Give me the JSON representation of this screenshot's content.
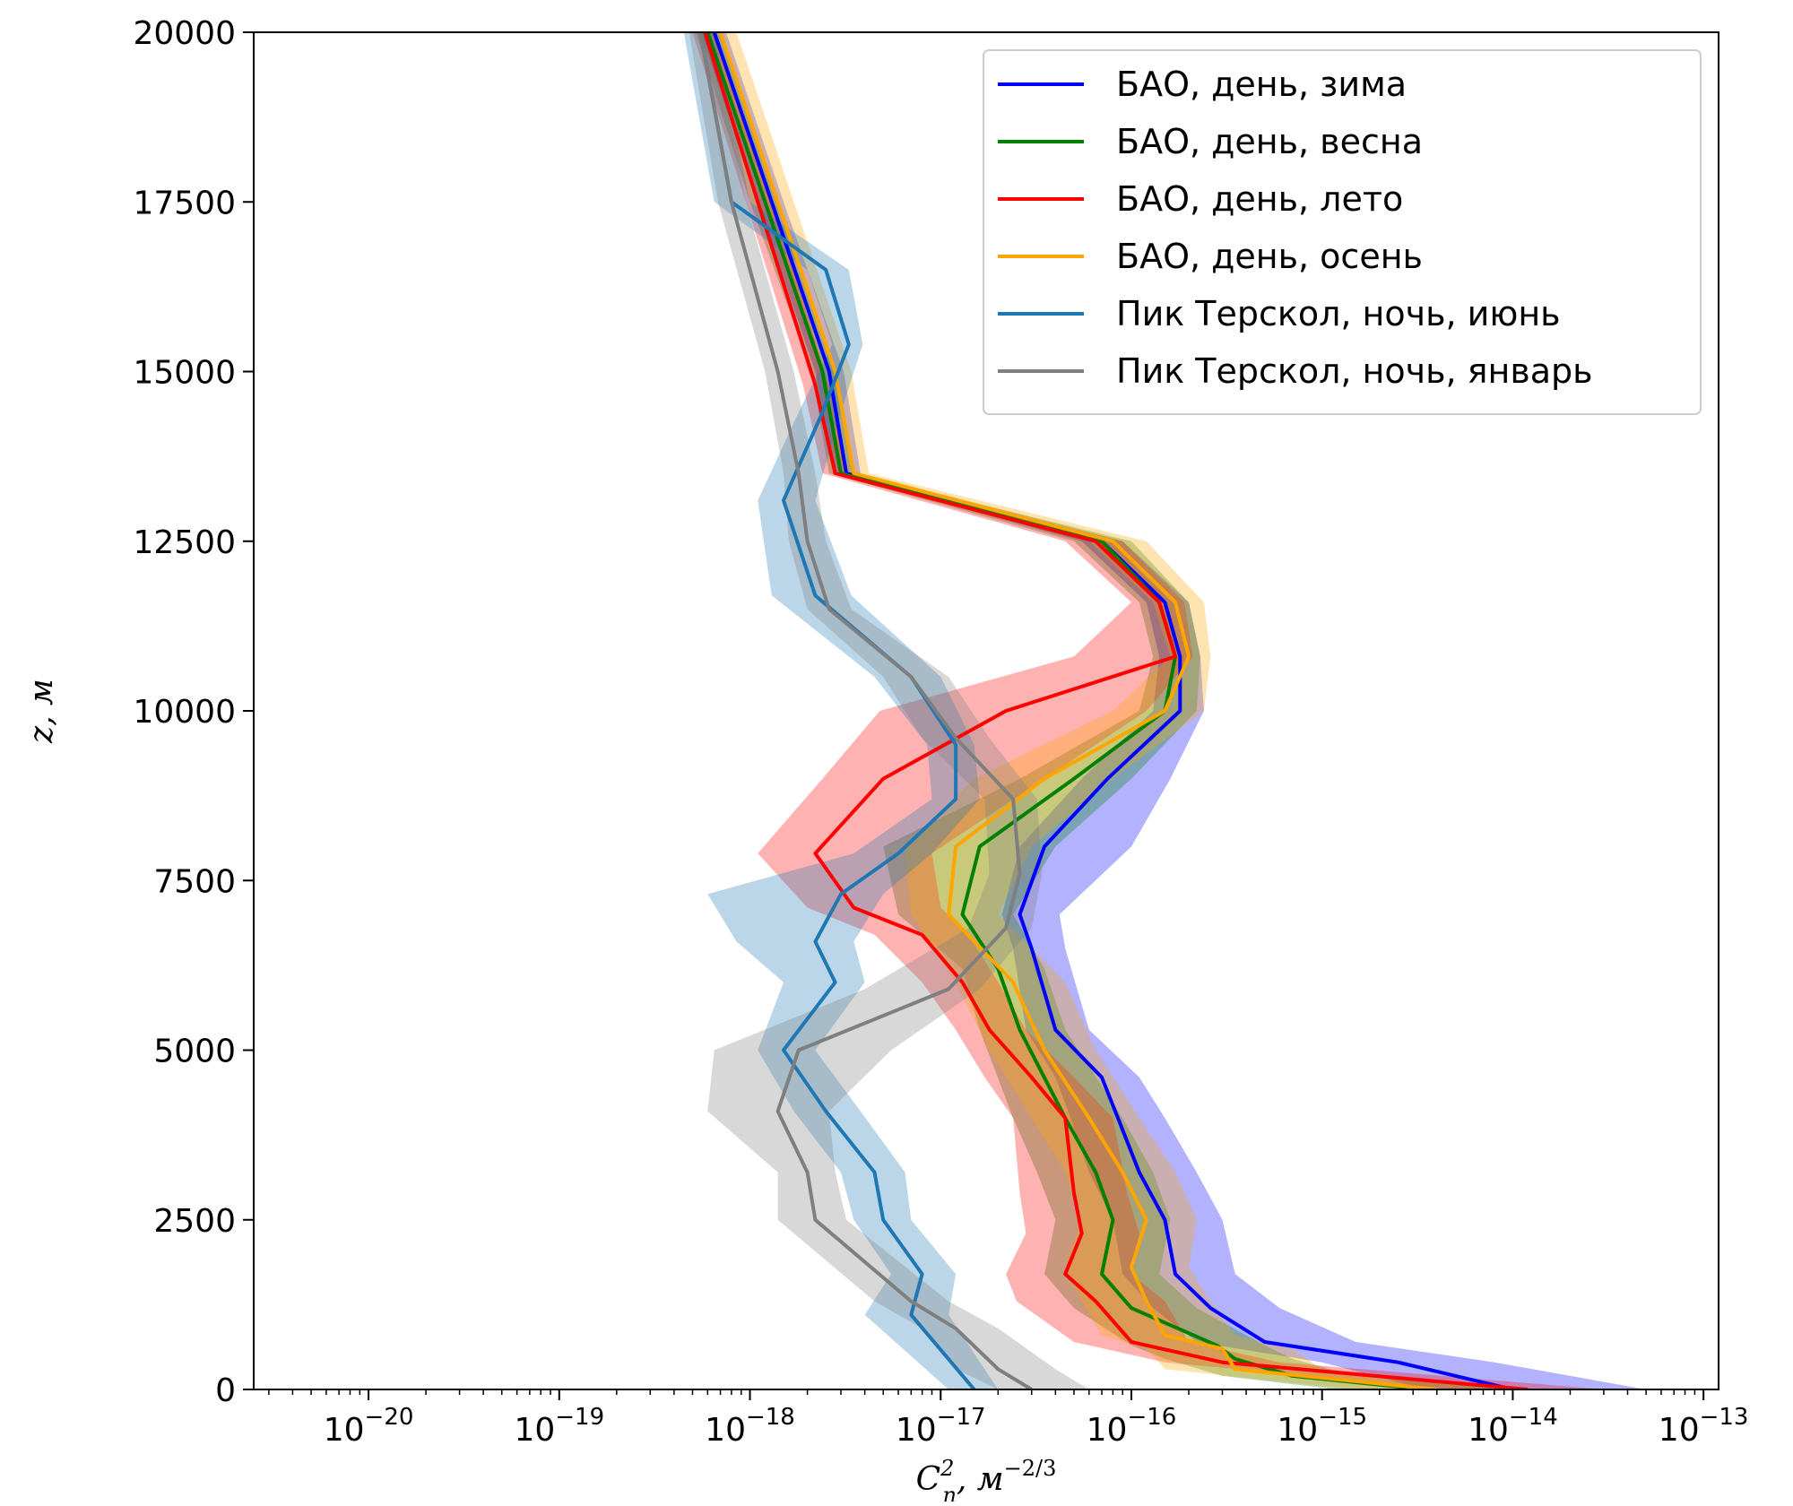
{
  "chart_data": {
    "type": "line",
    "title": "",
    "xlabel": "C_n^2, м^{-2/3}",
    "xlabel_parts": {
      "base": "C",
      "sub": "n",
      "sup": "2",
      "unit": ", м",
      "unit_sup": "−2/3"
    },
    "ylabel": "z, м",
    "xscale": "log",
    "xlim": [
      2.5e-21,
      1.2e-13
    ],
    "ylim": [
      0,
      20000
    ],
    "grid": false,
    "legend_position": "top-right",
    "x_ticks": [
      {
        "value": 1e-20,
        "base": "10",
        "exp": "−20"
      },
      {
        "value": 1e-19,
        "base": "10",
        "exp": "−19"
      },
      {
        "value": 1e-18,
        "base": "10",
        "exp": "−18"
      },
      {
        "value": 1e-17,
        "base": "10",
        "exp": "−17"
      },
      {
        "value": 1e-16,
        "base": "10",
        "exp": "−16"
      },
      {
        "value": 1e-15,
        "base": "10",
        "exp": "−15"
      },
      {
        "value": 1e-14,
        "base": "10",
        "exp": "−14"
      },
      {
        "value": 1e-13,
        "base": "10",
        "exp": "−13"
      }
    ],
    "y_ticks": [
      {
        "value": 0,
        "label": "0"
      },
      {
        "value": 2500,
        "label": "2500"
      },
      {
        "value": 5000,
        "label": "5000"
      },
      {
        "value": 7500,
        "label": "7500"
      },
      {
        "value": 10000,
        "label": "10000"
      },
      {
        "value": 12500,
        "label": "12500"
      },
      {
        "value": 15000,
        "label": "15000"
      },
      {
        "value": 17500,
        "label": "17500"
      },
      {
        "value": 20000,
        "label": "20000"
      }
    ],
    "series": [
      {
        "name": "БАО, день, зима",
        "color": "#0000ff",
        "z": [
          0,
          400,
          700,
          1200,
          1700,
          2500,
          3200,
          4000,
          4600,
          5300,
          6500,
          7000,
          8000,
          9000,
          10000,
          10800,
          11600,
          12500,
          13500,
          15000,
          17500,
          20000
        ],
        "x": [
          1e-14,
          2.5e-15,
          5e-16,
          2.6e-16,
          1.7e-16,
          1.5e-16,
          1.1e-16,
          8.5e-17,
          7e-17,
          4e-17,
          3e-17,
          2.6e-17,
          3.5e-17,
          7.5e-17,
          1.8e-16,
          1.8e-16,
          1.5e-16,
          7e-17,
          3.2e-18,
          2.6e-18,
          1.3e-18,
          6.5e-19
        ],
        "band_low": [
          3.5e-15,
          1e-15,
          2.2e-16,
          1.3e-16,
          9e-17,
          8e-17,
          6e-17,
          4.8e-17,
          4e-17,
          2.8e-17,
          2.4e-17,
          2.1e-17,
          2.6e-17,
          5.5e-17,
          1.3e-16,
          1.4e-16,
          1.2e-16,
          5.5e-17,
          2.8e-18,
          2.2e-18,
          1.1e-18,
          5.5e-19
        ],
        "band_high": [
          5e-14,
          8e-15,
          1.5e-15,
          6e-16,
          3.5e-16,
          3e-16,
          2.2e-16,
          1.5e-16,
          1.1e-16,
          6e-17,
          4.5e-17,
          4.2e-17,
          1e-16,
          1.6e-16,
          2.4e-16,
          2.3e-16,
          2e-16,
          9e-17,
          3.8e-18,
          3.1e-18,
          1.5e-18,
          7.5e-19
        ]
      },
      {
        "name": "БАО, день, весна",
        "color": "#008000",
        "z": [
          0,
          200,
          450,
          650,
          1200,
          1700,
          2500,
          3200,
          4000,
          5300,
          6200,
          7000,
          8000,
          9000,
          10000,
          10800,
          11600,
          12500,
          13500,
          15000,
          17500,
          20000
        ],
        "x": [
          3.5e-15,
          7e-16,
          3.5e-16,
          2.8e-16,
          1e-16,
          7e-17,
          8e-17,
          6.5e-17,
          4.5e-17,
          2.6e-17,
          2e-17,
          1.3e-17,
          1.6e-17,
          5e-17,
          1.5e-16,
          1.7e-16,
          1.4e-16,
          7e-17,
          3e-18,
          2.4e-18,
          1.2e-18,
          6e-19
        ],
        "band_low": [
          1.2e-15,
          3e-16,
          1.5e-16,
          1e-16,
          5e-17,
          3.5e-17,
          4e-17,
          3.2e-17,
          2.4e-17,
          1.6e-17,
          1.3e-17,
          6e-18,
          5e-18,
          2.6e-17,
          1.1e-16,
          1.3e-16,
          1.1e-16,
          5e-17,
          2.6e-18,
          2.1e-18,
          1e-18,
          5.2e-19
        ],
        "band_high": [
          1e-14,
          1.5e-15,
          7e-16,
          5e-16,
          2.2e-16,
          1.4e-16,
          1.6e-16,
          1.3e-16,
          9e-17,
          4.5e-17,
          3.5e-17,
          2.4e-17,
          4e-17,
          1e-16,
          2.2e-16,
          2.3e-16,
          2e-16,
          1e-16,
          3.5e-18,
          2.8e-18,
          1.4e-18,
          7e-19
        ]
      },
      {
        "name": "БАО, день, лето",
        "color": "#ff0000",
        "z": [
          0,
          400,
          700,
          1300,
          1700,
          2300,
          2900,
          4000,
          4600,
          5300,
          6000,
          6700,
          7100,
          7900,
          9000,
          10000,
          10800,
          11600,
          12500,
          13500,
          14800,
          17500,
          20000
        ],
        "x": [
          1.2e-14,
          3e-16,
          1e-16,
          6.5e-17,
          4.5e-17,
          5.5e-17,
          5e-17,
          4.5e-17,
          3e-17,
          1.8e-17,
          1.3e-17,
          8e-18,
          3.5e-18,
          2.2e-18,
          5e-18,
          2.2e-17,
          1.7e-16,
          1.4e-16,
          6.5e-17,
          2.8e-18,
          2.2e-18,
          1.1e-18,
          5.8e-19
        ],
        "band_low": [
          5e-15,
          1.5e-16,
          5e-17,
          2.5e-17,
          2.2e-17,
          2.8e-17,
          2.6e-17,
          2.4e-17,
          1.7e-17,
          1.2e-17,
          8e-18,
          4.5e-18,
          2e-18,
          1.1e-18,
          2.4e-18,
          4.8e-18,
          5e-17,
          1e-16,
          4.5e-17,
          2.4e-18,
          1.9e-18,
          9.5e-19,
          5e-19
        ],
        "band_high": [
          3e-14,
          6e-16,
          2e-16,
          1.5e-16,
          1e-16,
          1.1e-16,
          9.5e-17,
          8e-17,
          5e-17,
          2.8e-17,
          2e-17,
          1.4e-17,
          1e-17,
          9e-18,
          3.5e-17,
          1.2e-16,
          2.1e-16,
          1.9e-16,
          9e-17,
          3.3e-18,
          2.6e-18,
          1.3e-18,
          6.6e-19
        ]
      },
      {
        "name": "БАО, день, осень",
        "color": "#ffa500",
        "z": [
          0,
          300,
          600,
          800,
          1300,
          1800,
          2500,
          3200,
          4000,
          5000,
          6000,
          7000,
          8000,
          9000,
          10000,
          10800,
          11600,
          12500,
          13500,
          15000,
          17500,
          20000
        ],
        "x": [
          4e-15,
          3.5e-16,
          3e-16,
          1.5e-16,
          1.2e-16,
          1e-16,
          1.2e-16,
          9e-17,
          6e-17,
          3.5e-17,
          2.4e-17,
          1.1e-17,
          1.2e-17,
          3.5e-17,
          1.5e-16,
          2e-16,
          1.7e-16,
          8e-17,
          3.5e-18,
          2.8e-18,
          1.4e-18,
          7e-19
        ],
        "band_low": [
          1.5e-15,
          1.5e-16,
          1.2e-16,
          7e-17,
          5.5e-17,
          4.5e-17,
          5.5e-17,
          4.5e-17,
          3e-17,
          1.8e-17,
          1.2e-17,
          7e-18,
          6.5e-18,
          1.5e-17,
          8e-17,
          1.6e-16,
          1.3e-16,
          6e-17,
          3e-18,
          2.4e-18,
          1.2e-18,
          6e-19
        ],
        "band_high": [
          1.2e-14,
          1e-15,
          7e-16,
          3.5e-16,
          2.6e-16,
          2e-16,
          2.2e-16,
          1.7e-16,
          1.1e-16,
          6.5e-17,
          4.5e-17,
          2e-17,
          3e-17,
          8e-17,
          2.4e-16,
          2.6e-16,
          2.4e-16,
          1.2e-16,
          4.2e-18,
          3.4e-18,
          1.7e-18,
          8.5e-19
        ]
      },
      {
        "name": "Пик Терскол, ночь, июнь",
        "color": "#1f77b4",
        "z": [
          0,
          1100,
          1700,
          2500,
          3200,
          4100,
          5000,
          6000,
          6600,
          7300,
          7900,
          8700,
          9500,
          10500,
          11700,
          13100,
          14400,
          15400,
          16500,
          17500,
          20000
        ],
        "x": [
          1.5e-17,
          7e-18,
          8e-18,
          5e-18,
          4.5e-18,
          2.5e-18,
          1.5e-18,
          2.8e-18,
          2.2e-18,
          3e-18,
          6e-18,
          1.2e-17,
          1.2e-17,
          7e-18,
          2.2e-18,
          1.5e-18,
          2.4e-18,
          3.3e-18,
          2.5e-18,
          8e-19,
          5.5e-19
        ],
        "band_low": [
          1.1e-17,
          4e-18,
          5.5e-18,
          3.5e-18,
          3e-18,
          1.7e-18,
          1.1e-18,
          1.5e-18,
          8.5e-19,
          6e-19,
          3.5e-18,
          9e-18,
          8.5e-18,
          4.5e-18,
          1.3e-18,
          1.1e-18,
          1.8e-18,
          2.7e-18,
          2e-18,
          6.5e-19,
          4.5e-19
        ],
        "band_high": [
          2e-17,
          1.1e-17,
          1.2e-17,
          7e-18,
          6.5e-18,
          3.8e-18,
          2.2e-18,
          4e-18,
          3.5e-18,
          5e-18,
          9e-18,
          1.6e-17,
          1.5e-17,
          1e-17,
          3.4e-18,
          2.2e-18,
          3e-18,
          3.9e-18,
          3.3e-18,
          1e-18,
          6.5e-19
        ]
      },
      {
        "name": "Пик Терскол, ночь, январь",
        "color": "#7f7f7f",
        "z": [
          0,
          300,
          900,
          1300,
          2500,
          3200,
          4100,
          5000,
          5900,
          6800,
          7600,
          8700,
          9600,
          10500,
          11500,
          12500,
          13500,
          15000,
          17500,
          20000
        ],
        "x": [
          3e-17,
          2e-17,
          1.2e-17,
          7e-18,
          2.2e-18,
          2e-18,
          1.4e-18,
          1.8e-18,
          1.1e-17,
          2.2e-17,
          2.6e-17,
          2.4e-17,
          1.2e-17,
          7e-18,
          2.6e-18,
          2e-18,
          1.8e-18,
          1.4e-18,
          8e-19,
          5.5e-19
        ],
        "band_low": [
          2e-17,
          1.2e-17,
          8e-18,
          4.5e-18,
          1.4e-18,
          1.4e-18,
          6e-19,
          6.5e-19,
          4e-18,
          1.4e-17,
          1.8e-17,
          1.7e-17,
          8e-18,
          5e-18,
          2e-18,
          1.6e-18,
          1.5e-18,
          1.2e-18,
          6.8e-19,
          4.8e-19
        ],
        "band_high": [
          6e-17,
          4e-17,
          2e-17,
          1.1e-17,
          3.2e-18,
          2.8e-18,
          2.6e-18,
          5.5e-18,
          1.6e-17,
          3e-17,
          3.4e-17,
          3.2e-17,
          1.8e-17,
          1.1e-17,
          3.4e-18,
          2.5e-18,
          2.2e-18,
          1.7e-18,
          9.5e-19,
          6.3e-19
        ]
      }
    ]
  }
}
